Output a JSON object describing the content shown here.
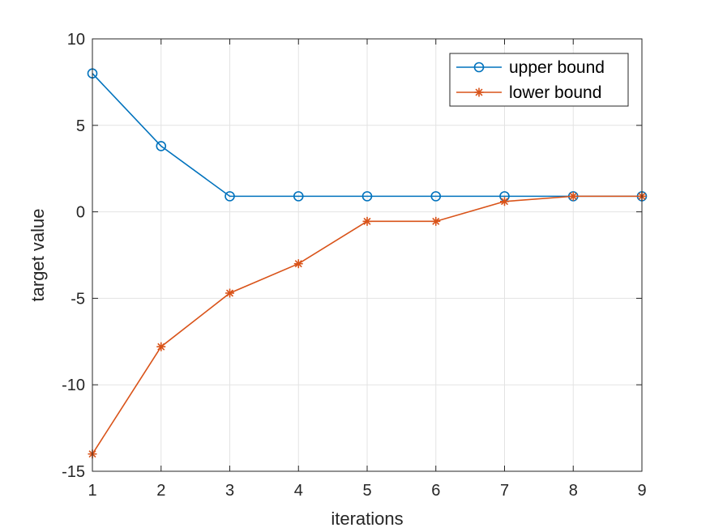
{
  "chart_data": {
    "type": "line",
    "title": "",
    "xlabel": "iterations",
    "ylabel": "target value",
    "xlim": [
      1,
      9
    ],
    "ylim": [
      -15,
      10
    ],
    "xticks": [
      1,
      2,
      3,
      4,
      5,
      6,
      7,
      8,
      9
    ],
    "yticks": [
      -15,
      -10,
      -5,
      0,
      5,
      10
    ],
    "grid": true,
    "legend_position": "top-right",
    "x": [
      1,
      2,
      3,
      4,
      5,
      6,
      7,
      8,
      9
    ],
    "series": [
      {
        "name": "upper bound",
        "marker": "circle",
        "color": "#0072BD",
        "values": [
          8.0,
          3.8,
          0.9,
          0.9,
          0.9,
          0.9,
          0.9,
          0.9,
          0.9
        ]
      },
      {
        "name": "lower bound",
        "marker": "asterisk",
        "color": "#D95319",
        "values": [
          -14.0,
          -7.8,
          -4.7,
          -3.0,
          -0.55,
          -0.55,
          0.6,
          0.9,
          0.9
        ]
      }
    ]
  }
}
